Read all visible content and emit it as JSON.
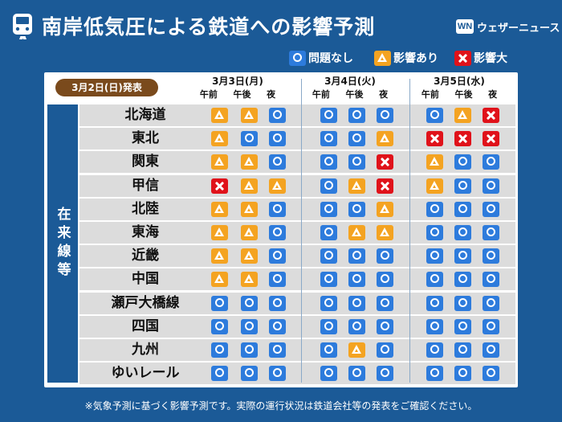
{
  "title": "南岸低気圧による鉄道への影響予測",
  "brand": {
    "mark": "WN",
    "text": "ウェザーニュース"
  },
  "legend": [
    {
      "symbol": "o",
      "label": "問題なし"
    },
    {
      "symbol": "t",
      "label": "影響あり"
    },
    {
      "symbol": "x",
      "label": "影響大"
    }
  ],
  "issued": "3月2日(日)発表",
  "days": [
    {
      "name": "3月3日(月)",
      "periods": [
        "午前",
        "午後",
        "夜"
      ]
    },
    {
      "name": "3月4日(火)",
      "periods": [
        "午前",
        "午後",
        "夜"
      ]
    },
    {
      "name": "3月5日(水)",
      "periods": [
        "午前",
        "午後",
        "夜"
      ]
    }
  ],
  "side_label": "在来線等",
  "rows": [
    {
      "region": "北海道",
      "status": [
        "t",
        "t",
        "o",
        "o",
        "o",
        "o",
        "o",
        "t",
        "x"
      ]
    },
    {
      "region": "東北",
      "status": [
        "t",
        "o",
        "o",
        "o",
        "o",
        "t",
        "x",
        "x",
        "x"
      ]
    },
    {
      "region": "関東",
      "status": [
        "t",
        "t",
        "o",
        "o",
        "o",
        "x",
        "t",
        "o",
        "o"
      ]
    },
    {
      "region": "甲信",
      "status": [
        "x",
        "t",
        "t",
        "o",
        "t",
        "x",
        "t",
        "o",
        "o"
      ]
    },
    {
      "region": "北陸",
      "status": [
        "t",
        "t",
        "o",
        "o",
        "o",
        "t",
        "o",
        "o",
        "o"
      ]
    },
    {
      "region": "東海",
      "status": [
        "t",
        "t",
        "o",
        "o",
        "t",
        "t",
        "o",
        "o",
        "o"
      ]
    },
    {
      "region": "近畿",
      "status": [
        "t",
        "t",
        "o",
        "o",
        "o",
        "o",
        "o",
        "o",
        "o"
      ]
    },
    {
      "region": "中国",
      "status": [
        "t",
        "t",
        "o",
        "o",
        "o",
        "o",
        "o",
        "o",
        "o"
      ]
    },
    {
      "region": "瀬戸大橋線",
      "status": [
        "o",
        "o",
        "o",
        "o",
        "o",
        "o",
        "o",
        "o",
        "o"
      ]
    },
    {
      "region": "四国",
      "status": [
        "o",
        "o",
        "o",
        "o",
        "o",
        "o",
        "o",
        "o",
        "o"
      ]
    },
    {
      "region": "九州",
      "status": [
        "o",
        "o",
        "o",
        "o",
        "t",
        "o",
        "o",
        "o",
        "o"
      ]
    },
    {
      "region": "ゆいレール",
      "status": [
        "o",
        "o",
        "o",
        "o",
        "o",
        "o",
        "o",
        "o",
        "o"
      ]
    }
  ],
  "footer": "※気象予測に基づく影響予測です。実際の運行状況は鉄道会社等の発表をご確認ください。"
}
